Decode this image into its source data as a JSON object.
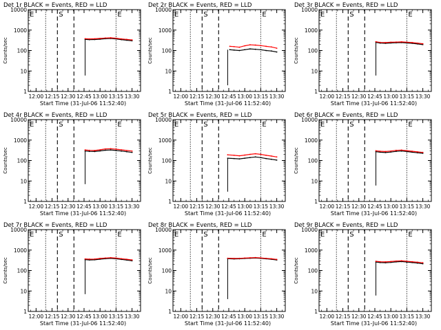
{
  "chart_data": [
    {
      "type": "line",
      "title": "Det 1r BLACK = Events, RED = LLD",
      "xlabel": "Start Time (31-Jul-06 11:52:40)",
      "ylabel": "Counts/sec",
      "yscale": "log",
      "ylim": [
        1,
        10000
      ],
      "xlim": [
        "11:52:40",
        "13:38:00"
      ],
      "x_ticks": [
        "12:00",
        "12:15",
        "12:30",
        "12:45",
        "13:00",
        "13:15",
        "13:30"
      ],
      "y_ticks": [
        "1",
        "10",
        "100",
        "1000",
        "10000"
      ],
      "markers": [
        {
          "label": "E",
          "time": "11:52:40",
          "style": "dotted"
        },
        {
          "label": "S",
          "time": "12:20:00",
          "style": "dashed"
        },
        {
          "label": "",
          "time": "12:09:00",
          "style": "dotted"
        },
        {
          "label": "",
          "time": "12:35:30",
          "style": "dashed"
        },
        {
          "label": "E",
          "time": "13:15:00",
          "style": "dotted"
        }
      ],
      "series": [
        {
          "name": "Events",
          "color": "#000000",
          "x": [
            "12:46",
            "12:50",
            "12:55",
            "13:00",
            "13:05",
            "13:10",
            "13:15",
            "13:20",
            "13:25",
            "13:30"
          ],
          "y": [
            350,
            340,
            345,
            360,
            380,
            390,
            370,
            340,
            320,
            300
          ]
        },
        {
          "name": "LLD",
          "color": "#ff0000",
          "x": [
            "12:46",
            "12:50",
            "12:55",
            "13:00",
            "13:05",
            "13:10",
            "13:15",
            "13:20",
            "13:25",
            "13:30"
          ],
          "y": [
            380,
            370,
            375,
            390,
            410,
            420,
            400,
            370,
            350,
            330
          ]
        }
      ],
      "drop": {
        "time": "12:46",
        "y": 6
      }
    },
    {
      "type": "line",
      "title": "Det 2r BLACK = Events, RED = LLD",
      "xlabel": "Start Time (31-Jul-06 11:52:40)",
      "ylabel": "Counts/sec",
      "yscale": "log",
      "ylim": [
        1,
        10000
      ],
      "xlim": [
        "11:52:40",
        "13:38:00"
      ],
      "x_ticks": [
        "12:00",
        "12:15",
        "12:30",
        "12:45",
        "13:00",
        "13:15",
        "13:30"
      ],
      "y_ticks": [
        "1",
        "10",
        "100",
        "1000",
        "10000"
      ],
      "markers": [
        {
          "label": "E",
          "time": "11:52:40",
          "style": "dotted"
        },
        {
          "label": "S",
          "time": "12:20:00",
          "style": "dashed"
        },
        {
          "label": "",
          "time": "12:09:00",
          "style": "dotted"
        },
        {
          "label": "",
          "time": "12:35:30",
          "style": "dashed"
        },
        {
          "label": "E",
          "time": "13:15:00",
          "style": "dotted"
        }
      ],
      "series": [
        {
          "name": "Events",
          "color": "#000000",
          "x": [
            "12:46",
            "12:50",
            "12:55",
            "13:00",
            "13:05",
            "13:10",
            "13:15",
            "13:20",
            "13:25",
            "13:30"
          ],
          "y": [
            110,
            105,
            100,
            110,
            120,
            115,
            110,
            100,
            95,
            85
          ]
        },
        {
          "name": "LLD",
          "color": "#ff0000",
          "x": [
            "12:46",
            "12:50",
            "12:55",
            "13:00",
            "13:05",
            "13:10",
            "13:15",
            "13:20",
            "13:25",
            "13:30"
          ],
          "y": [
            160,
            155,
            145,
            170,
            190,
            185,
            175,
            160,
            150,
            130
          ]
        }
      ],
      "drop": {
        "time": "12:44",
        "y": 2
      }
    },
    {
      "type": "line",
      "title": "Det 3r BLACK = Events, RED = LLD",
      "xlabel": "Start Time (31-Jul-06 11:52:40)",
      "ylabel": "Counts/sec",
      "yscale": "log",
      "ylim": [
        1,
        10000
      ],
      "xlim": [
        "11:52:40",
        "13:38:00"
      ],
      "x_ticks": [
        "12:00",
        "12:15",
        "12:30",
        "12:45",
        "13:00",
        "13:15",
        "13:30"
      ],
      "y_ticks": [
        "1",
        "10",
        "100",
        "1000",
        "10000"
      ],
      "markers": [
        {
          "label": "E",
          "time": "11:52:40",
          "style": "dotted"
        },
        {
          "label": "S",
          "time": "12:20:00",
          "style": "dashed"
        },
        {
          "label": "",
          "time": "12:09:00",
          "style": "dotted"
        },
        {
          "label": "",
          "time": "12:35:30",
          "style": "dashed"
        },
        {
          "label": "E",
          "time": "13:15:00",
          "style": "dotted"
        }
      ],
      "series": [
        {
          "name": "Events",
          "color": "#000000",
          "x": [
            "12:46",
            "12:50",
            "12:55",
            "13:00",
            "13:05",
            "13:10",
            "13:15",
            "13:20",
            "13:25",
            "13:30"
          ],
          "y": [
            250,
            230,
            225,
            235,
            240,
            245,
            235,
            225,
            210,
            195
          ]
        },
        {
          "name": "LLD",
          "color": "#ff0000",
          "x": [
            "12:46",
            "12:50",
            "12:55",
            "13:00",
            "13:05",
            "13:10",
            "13:15",
            "13:20",
            "13:25",
            "13:30"
          ],
          "y": [
            270,
            250,
            245,
            255,
            260,
            265,
            255,
            245,
            230,
            215
          ]
        }
      ],
      "drop": {
        "time": "12:46",
        "y": 6
      }
    },
    {
      "type": "line",
      "title": "Det 4r BLACK = Events, RED = LLD",
      "xlabel": "Start Time (31-Jul-06 11:52:40)",
      "ylabel": "Counts/sec",
      "yscale": "log",
      "ylim": [
        1,
        10000
      ],
      "xlim": [
        "11:52:40",
        "13:38:00"
      ],
      "x_ticks": [
        "12:00",
        "12:15",
        "12:30",
        "12:45",
        "13:00",
        "13:15",
        "13:30"
      ],
      "y_ticks": [
        "1",
        "10",
        "100",
        "1000",
        "10000"
      ],
      "markers": [
        {
          "label": "E",
          "time": "11:52:40",
          "style": "dotted"
        },
        {
          "label": "S",
          "time": "12:20:00",
          "style": "dashed"
        },
        {
          "label": "",
          "time": "12:09:00",
          "style": "dotted"
        },
        {
          "label": "",
          "time": "12:35:30",
          "style": "dashed"
        },
        {
          "label": "E",
          "time": "13:15:00",
          "style": "dotted"
        }
      ],
      "series": [
        {
          "name": "Events",
          "color": "#000000",
          "x": [
            "12:46",
            "12:50",
            "12:55",
            "13:00",
            "13:05",
            "13:10",
            "13:15",
            "13:20",
            "13:25",
            "13:30"
          ],
          "y": [
            290,
            280,
            275,
            295,
            320,
            330,
            310,
            290,
            270,
            250
          ]
        },
        {
          "name": "LLD",
          "color": "#ff0000",
          "x": [
            "12:46",
            "12:50",
            "12:55",
            "13:00",
            "13:05",
            "13:10",
            "13:15",
            "13:20",
            "13:25",
            "13:30"
          ],
          "y": [
            330,
            315,
            310,
            335,
            370,
            380,
            360,
            335,
            310,
            290
          ]
        }
      ],
      "drop": {
        "time": "12:46",
        "y": 7
      }
    },
    {
      "type": "line",
      "title": "Det 5r BLACK = Events, RED = LLD",
      "xlabel": "Start Time (31-Jul-06 11:52:40)",
      "ylabel": "Counts/sec",
      "yscale": "log",
      "ylim": [
        1,
        10000
      ],
      "xlim": [
        "11:52:40",
        "13:38:00"
      ],
      "x_ticks": [
        "12:00",
        "12:15",
        "12:30",
        "12:45",
        "13:00",
        "13:15",
        "13:30"
      ],
      "y_ticks": [
        "1",
        "10",
        "100",
        "1000",
        "10000"
      ],
      "markers": [
        {
          "label": "E",
          "time": "11:52:40",
          "style": "dotted"
        },
        {
          "label": "S",
          "time": "12:20:00",
          "style": "dashed"
        },
        {
          "label": "",
          "time": "12:09:00",
          "style": "dotted"
        },
        {
          "label": "",
          "time": "12:35:30",
          "style": "dashed"
        },
        {
          "label": "E",
          "time": "13:15:00",
          "style": "dotted"
        }
      ],
      "series": [
        {
          "name": "Events",
          "color": "#000000",
          "x": [
            "12:44",
            "12:50",
            "12:55",
            "13:00",
            "13:05",
            "13:10",
            "13:15",
            "13:20",
            "13:25",
            "13:30"
          ],
          "y": [
            130,
            125,
            120,
            130,
            140,
            150,
            140,
            125,
            115,
            105
          ]
        },
        {
          "name": "LLD",
          "color": "#ff0000",
          "x": [
            "12:44",
            "12:50",
            "12:55",
            "13:00",
            "13:05",
            "13:10",
            "13:15",
            "13:20",
            "13:25",
            "13:30"
          ],
          "y": [
            190,
            180,
            170,
            185,
            200,
            215,
            200,
            180,
            165,
            150
          ]
        }
      ],
      "drop": {
        "time": "12:44",
        "y": 3
      }
    },
    {
      "type": "line",
      "title": "Det 6r BLACK = Events, RED = LLD",
      "xlabel": "Start Time (31-Jul-06 11:52:40)",
      "ylabel": "Counts/sec",
      "yscale": "log",
      "ylim": [
        1,
        10000
      ],
      "xlim": [
        "11:52:40",
        "13:38:00"
      ],
      "x_ticks": [
        "12:00",
        "12:15",
        "12:30",
        "12:45",
        "13:00",
        "13:15",
        "13:30"
      ],
      "y_ticks": [
        "1",
        "10",
        "100",
        "1000",
        "10000"
      ],
      "markers": [
        {
          "label": "E",
          "time": "11:52:40",
          "style": "dotted"
        },
        {
          "label": "S",
          "time": "12:20:00",
          "style": "dashed"
        },
        {
          "label": "",
          "time": "12:09:00",
          "style": "dotted"
        },
        {
          "label": "",
          "time": "12:35:30",
          "style": "dashed"
        },
        {
          "label": "E",
          "time": "13:15:00",
          "style": "dotted"
        }
      ],
      "series": [
        {
          "name": "Events",
          "color": "#000000",
          "x": [
            "12:46",
            "12:50",
            "12:55",
            "13:00",
            "13:05",
            "13:10",
            "13:15",
            "13:20",
            "13:25",
            "13:30"
          ],
          "y": [
            270,
            255,
            245,
            260,
            280,
            290,
            275,
            255,
            240,
            225
          ]
        },
        {
          "name": "LLD",
          "color": "#ff0000",
          "x": [
            "12:46",
            "12:50",
            "12:55",
            "13:00",
            "13:05",
            "13:10",
            "13:15",
            "13:20",
            "13:25",
            "13:30"
          ],
          "y": [
            300,
            285,
            275,
            290,
            315,
            325,
            305,
            285,
            265,
            250
          ]
        }
      ],
      "drop": {
        "time": "12:46",
        "y": 6
      }
    },
    {
      "type": "line",
      "title": "Det 7r BLACK = Events, RED = LLD",
      "xlabel": "Start Time (31-Jul-06 11:52:40)",
      "ylabel": "Counts/sec",
      "yscale": "log",
      "ylim": [
        1,
        10000
      ],
      "xlim": [
        "11:52:40",
        "13:38:00"
      ],
      "x_ticks": [
        "12:00",
        "12:15",
        "12:30",
        "12:45",
        "13:00",
        "13:15",
        "13:30"
      ],
      "y_ticks": [
        "1",
        "10",
        "100",
        "1000",
        "10000"
      ],
      "markers": [
        {
          "label": "E",
          "time": "11:52:40",
          "style": "dotted"
        },
        {
          "label": "S",
          "time": "12:20:00",
          "style": "dashed"
        },
        {
          "label": "",
          "time": "12:09:00",
          "style": "dotted"
        },
        {
          "label": "",
          "time": "12:35:30",
          "style": "dashed"
        },
        {
          "label": "E",
          "time": "13:15:00",
          "style": "dotted"
        }
      ],
      "series": [
        {
          "name": "Events",
          "color": "#000000",
          "x": [
            "12:46",
            "12:50",
            "12:55",
            "13:00",
            "13:05",
            "13:10",
            "13:15",
            "13:20",
            "13:25",
            "13:30"
          ],
          "y": [
            340,
            330,
            335,
            360,
            380,
            395,
            375,
            350,
            325,
            300
          ]
        },
        {
          "name": "LLD",
          "color": "#ff0000",
          "x": [
            "12:46",
            "12:50",
            "12:55",
            "13:00",
            "13:05",
            "13:10",
            "13:15",
            "13:20",
            "13:25",
            "13:30"
          ],
          "y": [
            370,
            360,
            365,
            390,
            410,
            425,
            405,
            380,
            355,
            330
          ]
        }
      ],
      "drop": {
        "time": "12:46",
        "y": 7
      }
    },
    {
      "type": "line",
      "title": "Det 8r BLACK = Events, RED = LLD",
      "xlabel": "Start Time (31-Jul-06 11:52:40)",
      "ylabel": "Counts/sec",
      "yscale": "log",
      "ylim": [
        1,
        10000
      ],
      "xlim": [
        "11:52:40",
        "13:38:00"
      ],
      "x_ticks": [
        "12:00",
        "12:15",
        "12:30",
        "12:45",
        "13:00",
        "13:15",
        "13:30"
      ],
      "y_ticks": [
        "1",
        "10",
        "100",
        "1000",
        "10000"
      ],
      "markers": [
        {
          "label": "E",
          "time": "11:52:40",
          "style": "dotted"
        },
        {
          "label": "S",
          "time": "12:20:00",
          "style": "dashed"
        },
        {
          "label": "",
          "time": "12:09:00",
          "style": "dotted"
        },
        {
          "label": "",
          "time": "12:35:30",
          "style": "dashed"
        },
        {
          "label": "E",
          "time": "13:15:00",
          "style": "dotted"
        }
      ],
      "series": [
        {
          "name": "Events",
          "color": "#000000",
          "x": [
            "12:44",
            "12:50",
            "12:55",
            "13:00",
            "13:05",
            "13:10",
            "13:15",
            "13:20",
            "13:25",
            "13:30"
          ],
          "y": [
            380,
            370,
            375,
            390,
            400,
            410,
            395,
            375,
            355,
            330
          ]
        },
        {
          "name": "LLD",
          "color": "#ff0000",
          "x": [
            "12:44",
            "12:50",
            "12:55",
            "13:00",
            "13:05",
            "13:10",
            "13:15",
            "13:20",
            "13:25",
            "13:30"
          ],
          "y": [
            400,
            390,
            395,
            410,
            420,
            430,
            415,
            395,
            375,
            350
          ]
        }
      ],
      "drop": {
        "time": "12:44",
        "y": 4
      }
    },
    {
      "type": "line",
      "title": "Det 9r BLACK = Events, RED = LLD",
      "xlabel": "Start Time (31-Jul-06 11:52:40)",
      "ylabel": "Counts/sec",
      "yscale": "log",
      "ylim": [
        1,
        10000
      ],
      "xlim": [
        "11:52:40",
        "13:38:00"
      ],
      "x_ticks": [
        "12:00",
        "12:15",
        "12:30",
        "12:45",
        "13:00",
        "13:15",
        "13:30"
      ],
      "y_ticks": [
        "1",
        "10",
        "100",
        "1000",
        "10000"
      ],
      "markers": [
        {
          "label": "E",
          "time": "11:52:40",
          "style": "dotted"
        },
        {
          "label": "S",
          "time": "12:20:00",
          "style": "dashed"
        },
        {
          "label": "",
          "time": "12:09:00",
          "style": "dotted"
        },
        {
          "label": "",
          "time": "12:35:30",
          "style": "dashed"
        },
        {
          "label": "E",
          "time": "13:15:00",
          "style": "dotted"
        }
      ],
      "series": [
        {
          "name": "Events",
          "color": "#000000",
          "x": [
            "12:46",
            "12:50",
            "12:55",
            "13:00",
            "13:05",
            "13:10",
            "13:15",
            "13:20",
            "13:25",
            "13:30"
          ],
          "y": [
            260,
            245,
            240,
            250,
            265,
            275,
            260,
            245,
            230,
            215
          ]
        },
        {
          "name": "LLD",
          "color": "#ff0000",
          "x": [
            "12:46",
            "12:50",
            "12:55",
            "13:00",
            "13:05",
            "13:10",
            "13:15",
            "13:20",
            "13:25",
            "13:30"
          ],
          "y": [
            285,
            270,
            265,
            275,
            290,
            300,
            285,
            270,
            255,
            240
          ]
        }
      ],
      "drop": {
        "time": "12:46",
        "y": 6
      }
    }
  ]
}
